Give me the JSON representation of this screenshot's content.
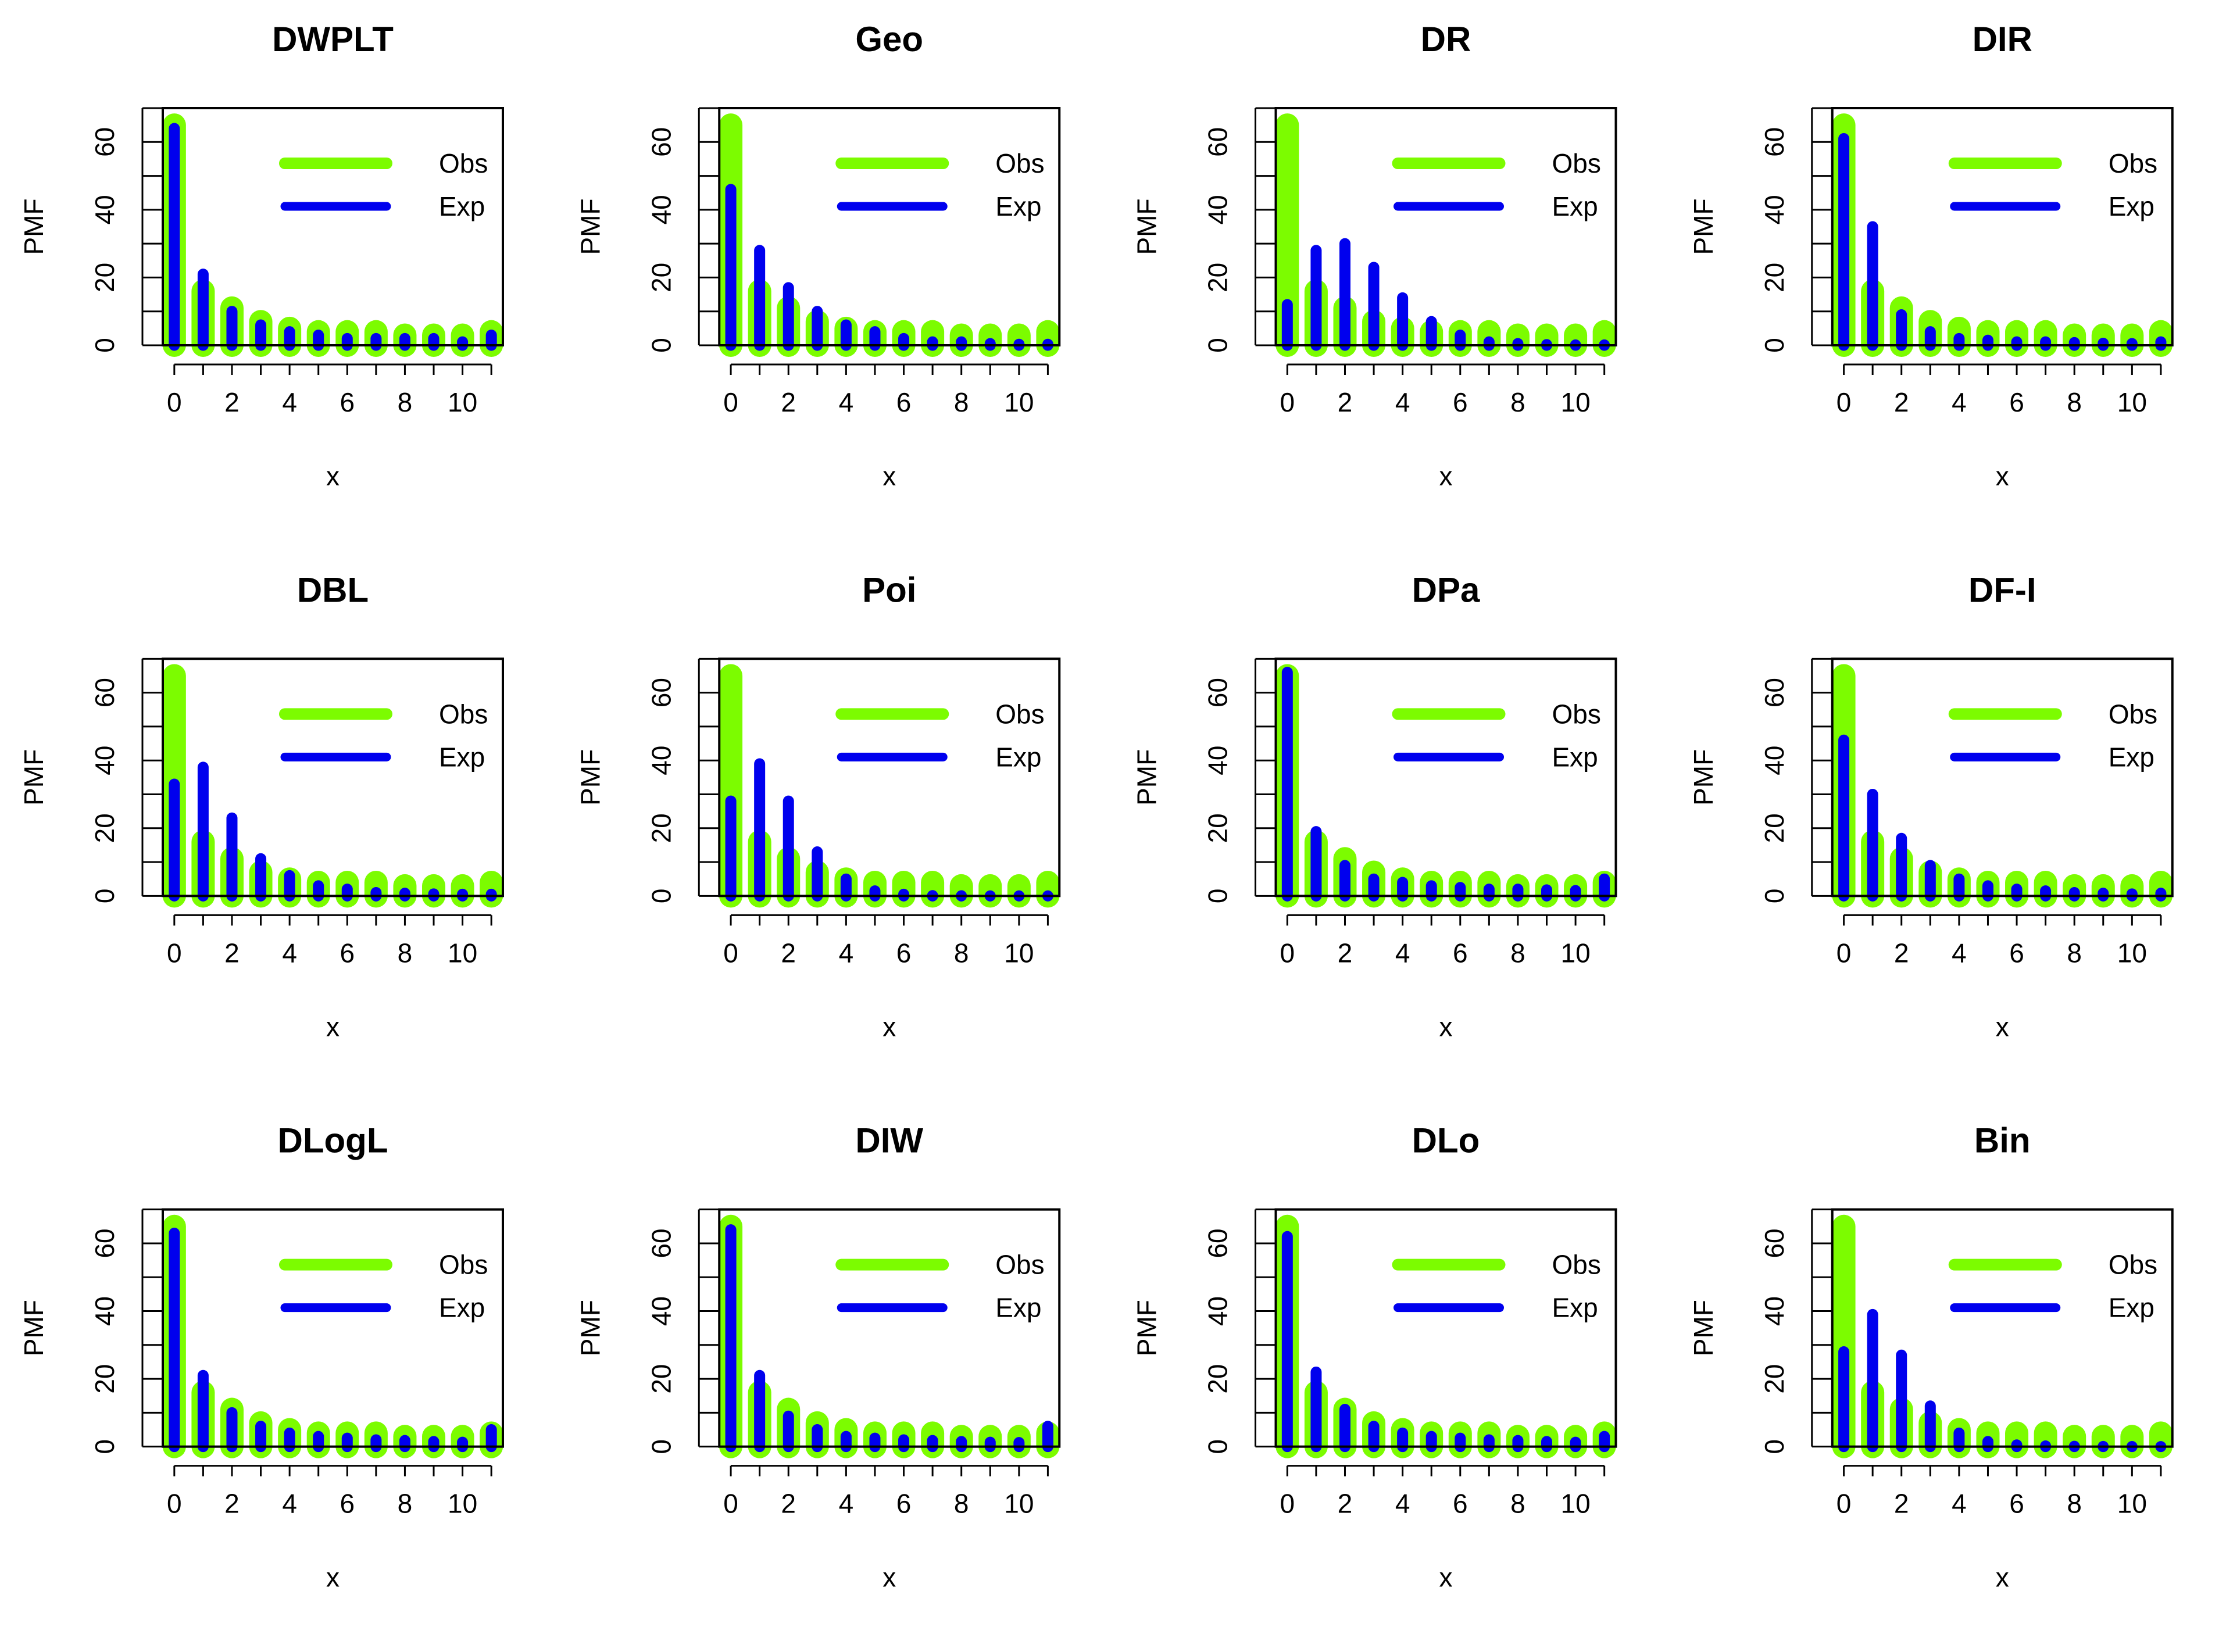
{
  "colors": {
    "obs": "#7CFC00",
    "exp": "#0000EE",
    "axis": "#000000",
    "background": "#FFFFFF"
  },
  "chart_data": [
    {
      "type": "bar",
      "title": "DWPLT",
      "xlabel": "x",
      "ylabel": "PMF",
      "x": [
        0,
        1,
        2,
        3,
        4,
        5,
        6,
        7,
        8,
        9,
        10,
        11
      ],
      "xticks": [
        "0",
        "2",
        "4",
        "6",
        "8",
        "10"
      ],
      "xtick_values": [
        0,
        2,
        4,
        6,
        8,
        10
      ],
      "yticks": [
        "0",
        "20",
        "40",
        "60"
      ],
      "ytick_values": [
        0,
        10,
        20,
        30,
        40,
        50,
        60,
        70
      ],
      "ytick_labeled": [
        0,
        20,
        40,
        60
      ],
      "ylim": [
        0,
        70
      ],
      "legend": {
        "position": "top-right",
        "entries": [
          "Obs",
          "Exp"
        ]
      },
      "series": [
        {
          "name": "Obs",
          "values": [
            65,
            16,
            11,
            7,
            5,
            4,
            4,
            4,
            3,
            3,
            3,
            4
          ]
        },
        {
          "name": "Exp",
          "values": [
            64,
            21,
            10,
            6,
            4,
            3,
            2,
            2,
            2,
            2,
            1,
            3
          ]
        }
      ]
    },
    {
      "type": "bar",
      "title": "Geo",
      "xlabel": "x",
      "ylabel": "PMF",
      "x": [
        0,
        1,
        2,
        3,
        4,
        5,
        6,
        7,
        8,
        9,
        10,
        11
      ],
      "xticks": [
        "0",
        "2",
        "4",
        "6",
        "8",
        "10"
      ],
      "xtick_values": [
        0,
        2,
        4,
        6,
        8,
        10
      ],
      "yticks": [
        "0",
        "20",
        "40",
        "60"
      ],
      "ytick_values": [
        0,
        10,
        20,
        30,
        40,
        50,
        60,
        70
      ],
      "ytick_labeled": [
        0,
        20,
        40,
        60
      ],
      "ylim": [
        0,
        70
      ],
      "legend": {
        "position": "top-right",
        "entries": [
          "Obs",
          "Exp"
        ]
      },
      "series": [
        {
          "name": "Obs",
          "values": [
            65,
            16,
            11,
            7,
            5,
            4,
            4,
            4,
            3,
            3,
            3,
            4
          ]
        },
        {
          "name": "Exp",
          "values": [
            46,
            28,
            17,
            10,
            6,
            4,
            2,
            1,
            1,
            0.5,
            0.3,
            0.3
          ]
        }
      ]
    },
    {
      "type": "bar",
      "title": "DR",
      "xlabel": "x",
      "ylabel": "PMF",
      "x": [
        0,
        1,
        2,
        3,
        4,
        5,
        6,
        7,
        8,
        9,
        10,
        11
      ],
      "xticks": [
        "0",
        "2",
        "4",
        "6",
        "8",
        "10"
      ],
      "xtick_values": [
        0,
        2,
        4,
        6,
        8,
        10
      ],
      "yticks": [
        "0",
        "20",
        "40",
        "60"
      ],
      "ytick_values": [
        0,
        10,
        20,
        30,
        40,
        50,
        60,
        70
      ],
      "ytick_labeled": [
        0,
        20,
        40,
        60
      ],
      "ylim": [
        0,
        70
      ],
      "legend": {
        "position": "top-right",
        "entries": [
          "Obs",
          "Exp"
        ]
      },
      "series": [
        {
          "name": "Obs",
          "values": [
            65,
            16,
            11,
            7,
            5,
            4,
            4,
            4,
            3,
            3,
            3,
            4
          ]
        },
        {
          "name": "Exp",
          "values": [
            12,
            28,
            30,
            23,
            14,
            7,
            3,
            1,
            0.5,
            0.2,
            0.1,
            0.1
          ]
        }
      ]
    },
    {
      "type": "bar",
      "title": "DIR",
      "xlabel": "x",
      "ylabel": "PMF",
      "x": [
        0,
        1,
        2,
        3,
        4,
        5,
        6,
        7,
        8,
        9,
        10,
        11
      ],
      "xticks": [
        "0",
        "2",
        "4",
        "6",
        "8",
        "10"
      ],
      "xtick_values": [
        0,
        2,
        4,
        6,
        8,
        10
      ],
      "yticks": [
        "0",
        "20",
        "40",
        "60"
      ],
      "ytick_values": [
        0,
        10,
        20,
        30,
        40,
        50,
        60,
        70
      ],
      "ytick_labeled": [
        0,
        20,
        40,
        60
      ],
      "ylim": [
        0,
        70
      ],
      "legend": {
        "position": "top-right",
        "entries": [
          "Obs",
          "Exp"
        ]
      },
      "series": [
        {
          "name": "Obs",
          "values": [
            65,
            16,
            11,
            7,
            5,
            4,
            4,
            4,
            3,
            3,
            3,
            4
          ]
        },
        {
          "name": "Exp",
          "values": [
            61,
            35,
            9,
            4,
            2,
            1.5,
            1,
            1,
            0.8,
            0.6,
            0.5,
            1
          ]
        }
      ]
    },
    {
      "type": "bar",
      "title": "DBL",
      "xlabel": "x",
      "ylabel": "PMF",
      "x": [
        0,
        1,
        2,
        3,
        4,
        5,
        6,
        7,
        8,
        9,
        10,
        11
      ],
      "xticks": [
        "0",
        "2",
        "4",
        "6",
        "8",
        "10"
      ],
      "xtick_values": [
        0,
        2,
        4,
        6,
        8,
        10
      ],
      "yticks": [
        "0",
        "20",
        "40",
        "60"
      ],
      "ytick_values": [
        0,
        10,
        20,
        30,
        40,
        50,
        60,
        70
      ],
      "ytick_labeled": [
        0,
        20,
        40,
        60
      ],
      "ylim": [
        0,
        70
      ],
      "legend": {
        "position": "top-right",
        "entries": [
          "Obs",
          "Exp"
        ]
      },
      "series": [
        {
          "name": "Obs",
          "values": [
            65,
            16,
            11,
            7,
            5,
            4,
            4,
            4,
            3,
            3,
            3,
            4
          ]
        },
        {
          "name": "Exp",
          "values": [
            33,
            38,
            23,
            11,
            6,
            3,
            2,
            1,
            0.8,
            0.6,
            0.5,
            0.5
          ]
        }
      ]
    },
    {
      "type": "bar",
      "title": "Poi",
      "xlabel": "x",
      "ylabel": "PMF",
      "x": [
        0,
        1,
        2,
        3,
        4,
        5,
        6,
        7,
        8,
        9,
        10,
        11
      ],
      "xticks": [
        "0",
        "2",
        "4",
        "6",
        "8",
        "10"
      ],
      "xtick_values": [
        0,
        2,
        4,
        6,
        8,
        10
      ],
      "yticks": [
        "0",
        "20",
        "40",
        "60"
      ],
      "ytick_values": [
        0,
        10,
        20,
        30,
        40,
        50,
        60,
        70
      ],
      "ytick_labeled": [
        0,
        20,
        40,
        60
      ],
      "ylim": [
        0,
        70
      ],
      "legend": {
        "position": "top-right",
        "entries": [
          "Obs",
          "Exp"
        ]
      },
      "series": [
        {
          "name": "Obs",
          "values": [
            65,
            16,
            11,
            7,
            5,
            4,
            4,
            4,
            3,
            3,
            3,
            4
          ]
        },
        {
          "name": "Exp",
          "values": [
            28,
            39,
            28,
            13,
            5,
            1.5,
            0.5,
            0.1,
            0.05,
            0.02,
            0.01,
            0.01
          ]
        }
      ]
    },
    {
      "type": "bar",
      "title": "DPa",
      "xlabel": "x",
      "ylabel": "PMF",
      "x": [
        0,
        1,
        2,
        3,
        4,
        5,
        6,
        7,
        8,
        9,
        10,
        11
      ],
      "xticks": [
        "0",
        "2",
        "4",
        "6",
        "8",
        "10"
      ],
      "xtick_values": [
        0,
        2,
        4,
        6,
        8,
        10
      ],
      "yticks": [
        "0",
        "20",
        "40",
        "60"
      ],
      "ytick_values": [
        0,
        10,
        20,
        30,
        40,
        50,
        60,
        70
      ],
      "ytick_labeled": [
        0,
        20,
        40,
        60
      ],
      "ylim": [
        0,
        70
      ],
      "legend": {
        "position": "top-right",
        "entries": [
          "Obs",
          "Exp"
        ]
      },
      "series": [
        {
          "name": "Obs",
          "values": [
            65,
            16,
            11,
            7,
            5,
            4,
            4,
            4,
            3,
            3,
            3,
            4
          ]
        },
        {
          "name": "Exp",
          "values": [
            66,
            19,
            9,
            5,
            4,
            3,
            2.5,
            2,
            2,
            1.8,
            1.6,
            5
          ]
        }
      ]
    },
    {
      "type": "bar",
      "title": "DF-I",
      "xlabel": "x",
      "ylabel": "PMF",
      "x": [
        0,
        1,
        2,
        3,
        4,
        5,
        6,
        7,
        8,
        9,
        10,
        11
      ],
      "xticks": [
        "0",
        "2",
        "4",
        "6",
        "8",
        "10"
      ],
      "xtick_values": [
        0,
        2,
        4,
        6,
        8,
        10
      ],
      "yticks": [
        "0",
        "20",
        "40",
        "60"
      ],
      "ytick_values": [
        0,
        10,
        20,
        30,
        40,
        50,
        60,
        70
      ],
      "ytick_labeled": [
        0,
        20,
        40,
        60
      ],
      "ylim": [
        0,
        70
      ],
      "legend": {
        "position": "top-right",
        "entries": [
          "Obs",
          "Exp"
        ]
      },
      "series": [
        {
          "name": "Obs",
          "values": [
            65,
            16,
            11,
            7,
            5,
            4,
            4,
            4,
            3,
            3,
            3,
            4
          ]
        },
        {
          "name": "Exp",
          "values": [
            46,
            30,
            17,
            9,
            5,
            3,
            2,
            1.5,
            1,
            0.8,
            0.6,
            0.8
          ]
        }
      ]
    },
    {
      "type": "bar",
      "title": "DLogL",
      "xlabel": "x",
      "ylabel": "PMF",
      "x": [
        0,
        1,
        2,
        3,
        4,
        5,
        6,
        7,
        8,
        9,
        10,
        11
      ],
      "xticks": [
        "0",
        "2",
        "4",
        "6",
        "8",
        "10"
      ],
      "xtick_values": [
        0,
        2,
        4,
        6,
        8,
        10
      ],
      "yticks": [
        "0",
        "20",
        "40",
        "60"
      ],
      "ytick_values": [
        0,
        10,
        20,
        30,
        40,
        50,
        60,
        70
      ],
      "ytick_labeled": [
        0,
        20,
        40,
        60
      ],
      "ylim": [
        0,
        70
      ],
      "legend": {
        "position": "top-right",
        "entries": [
          "Obs",
          "Exp"
        ]
      },
      "series": [
        {
          "name": "Obs",
          "values": [
            65,
            16,
            11,
            7,
            5,
            4,
            4,
            4,
            3,
            3,
            3,
            4
          ]
        },
        {
          "name": "Exp",
          "values": [
            63,
            21,
            10,
            6,
            4,
            3,
            2.5,
            2,
            1.8,
            1.5,
            1.3,
            5
          ]
        }
      ]
    },
    {
      "type": "bar",
      "title": "DIW",
      "xlabel": "x",
      "ylabel": "PMF",
      "x": [
        0,
        1,
        2,
        3,
        4,
        5,
        6,
        7,
        8,
        9,
        10,
        11
      ],
      "xticks": [
        "0",
        "2",
        "4",
        "6",
        "8",
        "10"
      ],
      "xtick_values": [
        0,
        2,
        4,
        6,
        8,
        10
      ],
      "yticks": [
        "0",
        "20",
        "40",
        "60"
      ],
      "ytick_values": [
        0,
        10,
        20,
        30,
        40,
        50,
        60,
        70
      ],
      "ytick_labeled": [
        0,
        20,
        40,
        60
      ],
      "ylim": [
        0,
        70
      ],
      "legend": {
        "position": "top-right",
        "entries": [
          "Obs",
          "Exp"
        ]
      },
      "series": [
        {
          "name": "Obs",
          "values": [
            65,
            16,
            11,
            7,
            5,
            4,
            4,
            4,
            3,
            3,
            3,
            4
          ]
        },
        {
          "name": "Exp",
          "values": [
            64,
            21,
            9,
            5,
            3,
            2.5,
            2,
            1.8,
            1.5,
            1.3,
            1.2,
            6
          ]
        }
      ]
    },
    {
      "type": "bar",
      "title": "DLo",
      "xlabel": "x",
      "ylabel": "PMF",
      "x": [
        0,
        1,
        2,
        3,
        4,
        5,
        6,
        7,
        8,
        9,
        10,
        11
      ],
      "xticks": [
        "0",
        "2",
        "4",
        "6",
        "8",
        "10"
      ],
      "xtick_values": [
        0,
        2,
        4,
        6,
        8,
        10
      ],
      "yticks": [
        "0",
        "20",
        "40",
        "60"
      ],
      "ytick_values": [
        0,
        10,
        20,
        30,
        40,
        50,
        60,
        70
      ],
      "ytick_labeled": [
        0,
        20,
        40,
        60
      ],
      "ylim": [
        0,
        70
      ],
      "legend": {
        "position": "top-right",
        "entries": [
          "Obs",
          "Exp"
        ]
      },
      "series": [
        {
          "name": "Obs",
          "values": [
            65,
            16,
            11,
            7,
            5,
            4,
            4,
            4,
            3,
            3,
            3,
            4
          ]
        },
        {
          "name": "Exp",
          "values": [
            62,
            22,
            11,
            6,
            4,
            3,
            2.5,
            2,
            1.8,
            1.5,
            1.3,
            3
          ]
        }
      ]
    },
    {
      "type": "bar",
      "title": "Bin",
      "xlabel": "x",
      "ylabel": "PMF",
      "x": [
        0,
        1,
        2,
        3,
        4,
        5,
        6,
        7,
        8,
        9,
        10,
        11
      ],
      "xticks": [
        "0",
        "2",
        "4",
        "6",
        "8",
        "10"
      ],
      "xtick_values": [
        0,
        2,
        4,
        6,
        8,
        10
      ],
      "yticks": [
        "0",
        "20",
        "40",
        "60"
      ],
      "ytick_values": [
        0,
        10,
        20,
        30,
        40,
        50,
        60,
        70
      ],
      "ytick_labeled": [
        0,
        20,
        40,
        60
      ],
      "ylim": [
        0,
        70
      ],
      "legend": {
        "position": "top-right",
        "entries": [
          "Obs",
          "Exp"
        ]
      },
      "series": [
        {
          "name": "Obs",
          "values": [
            65,
            16,
            11,
            7,
            5,
            4,
            4,
            4,
            3,
            3,
            3,
            4
          ]
        },
        {
          "name": "Exp",
          "values": [
            28,
            39,
            27,
            12,
            4,
            1.5,
            0.5,
            0.2,
            0.1,
            0.05,
            0.02,
            0.01
          ]
        }
      ]
    }
  ]
}
